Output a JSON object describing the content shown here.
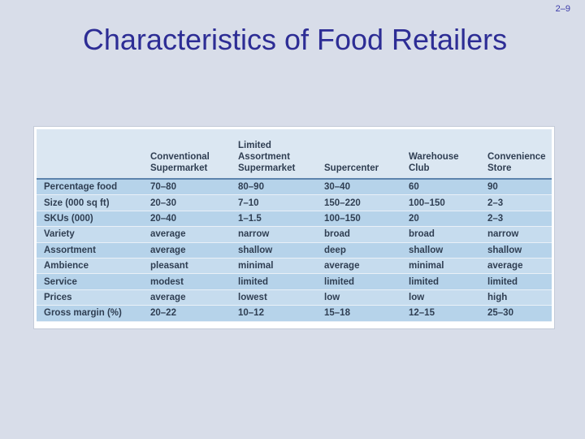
{
  "slide_number": "2–9",
  "title": "Characteristics of Food Retailers",
  "table": {
    "headers": [
      "",
      "Conventional\nSupermarket",
      "Limited\nAssortment\nSupermarket",
      "Supercenter",
      "Warehouse\nClub",
      "Convenience\nStore"
    ],
    "rows": [
      [
        "Percentage food",
        "70–80",
        "80–90",
        "30–40",
        "60",
        "90"
      ],
      [
        "Size (000 sq ft)",
        "20–30",
        "7–10",
        "150–220",
        "100–150",
        "2–3"
      ],
      [
        "SKUs (000)",
        "20–40",
        "1–1.5",
        "100–150",
        "20",
        "2–3"
      ],
      [
        "Variety",
        "average",
        "narrow",
        "broad",
        "broad",
        "narrow"
      ],
      [
        "Assortment",
        "average",
        "shallow",
        "deep",
        "shallow",
        "shallow"
      ],
      [
        "Ambience",
        "pleasant",
        "minimal",
        "average",
        "minimal",
        "average"
      ],
      [
        "Service",
        "modest",
        "limited",
        "limited",
        "limited",
        "limited"
      ],
      [
        "Prices",
        "average",
        "lowest",
        "low",
        "low",
        "high"
      ],
      [
        "Gross margin (%)",
        "20–22",
        "10–12",
        "15–18",
        "12–15",
        "25–30"
      ]
    ]
  }
}
